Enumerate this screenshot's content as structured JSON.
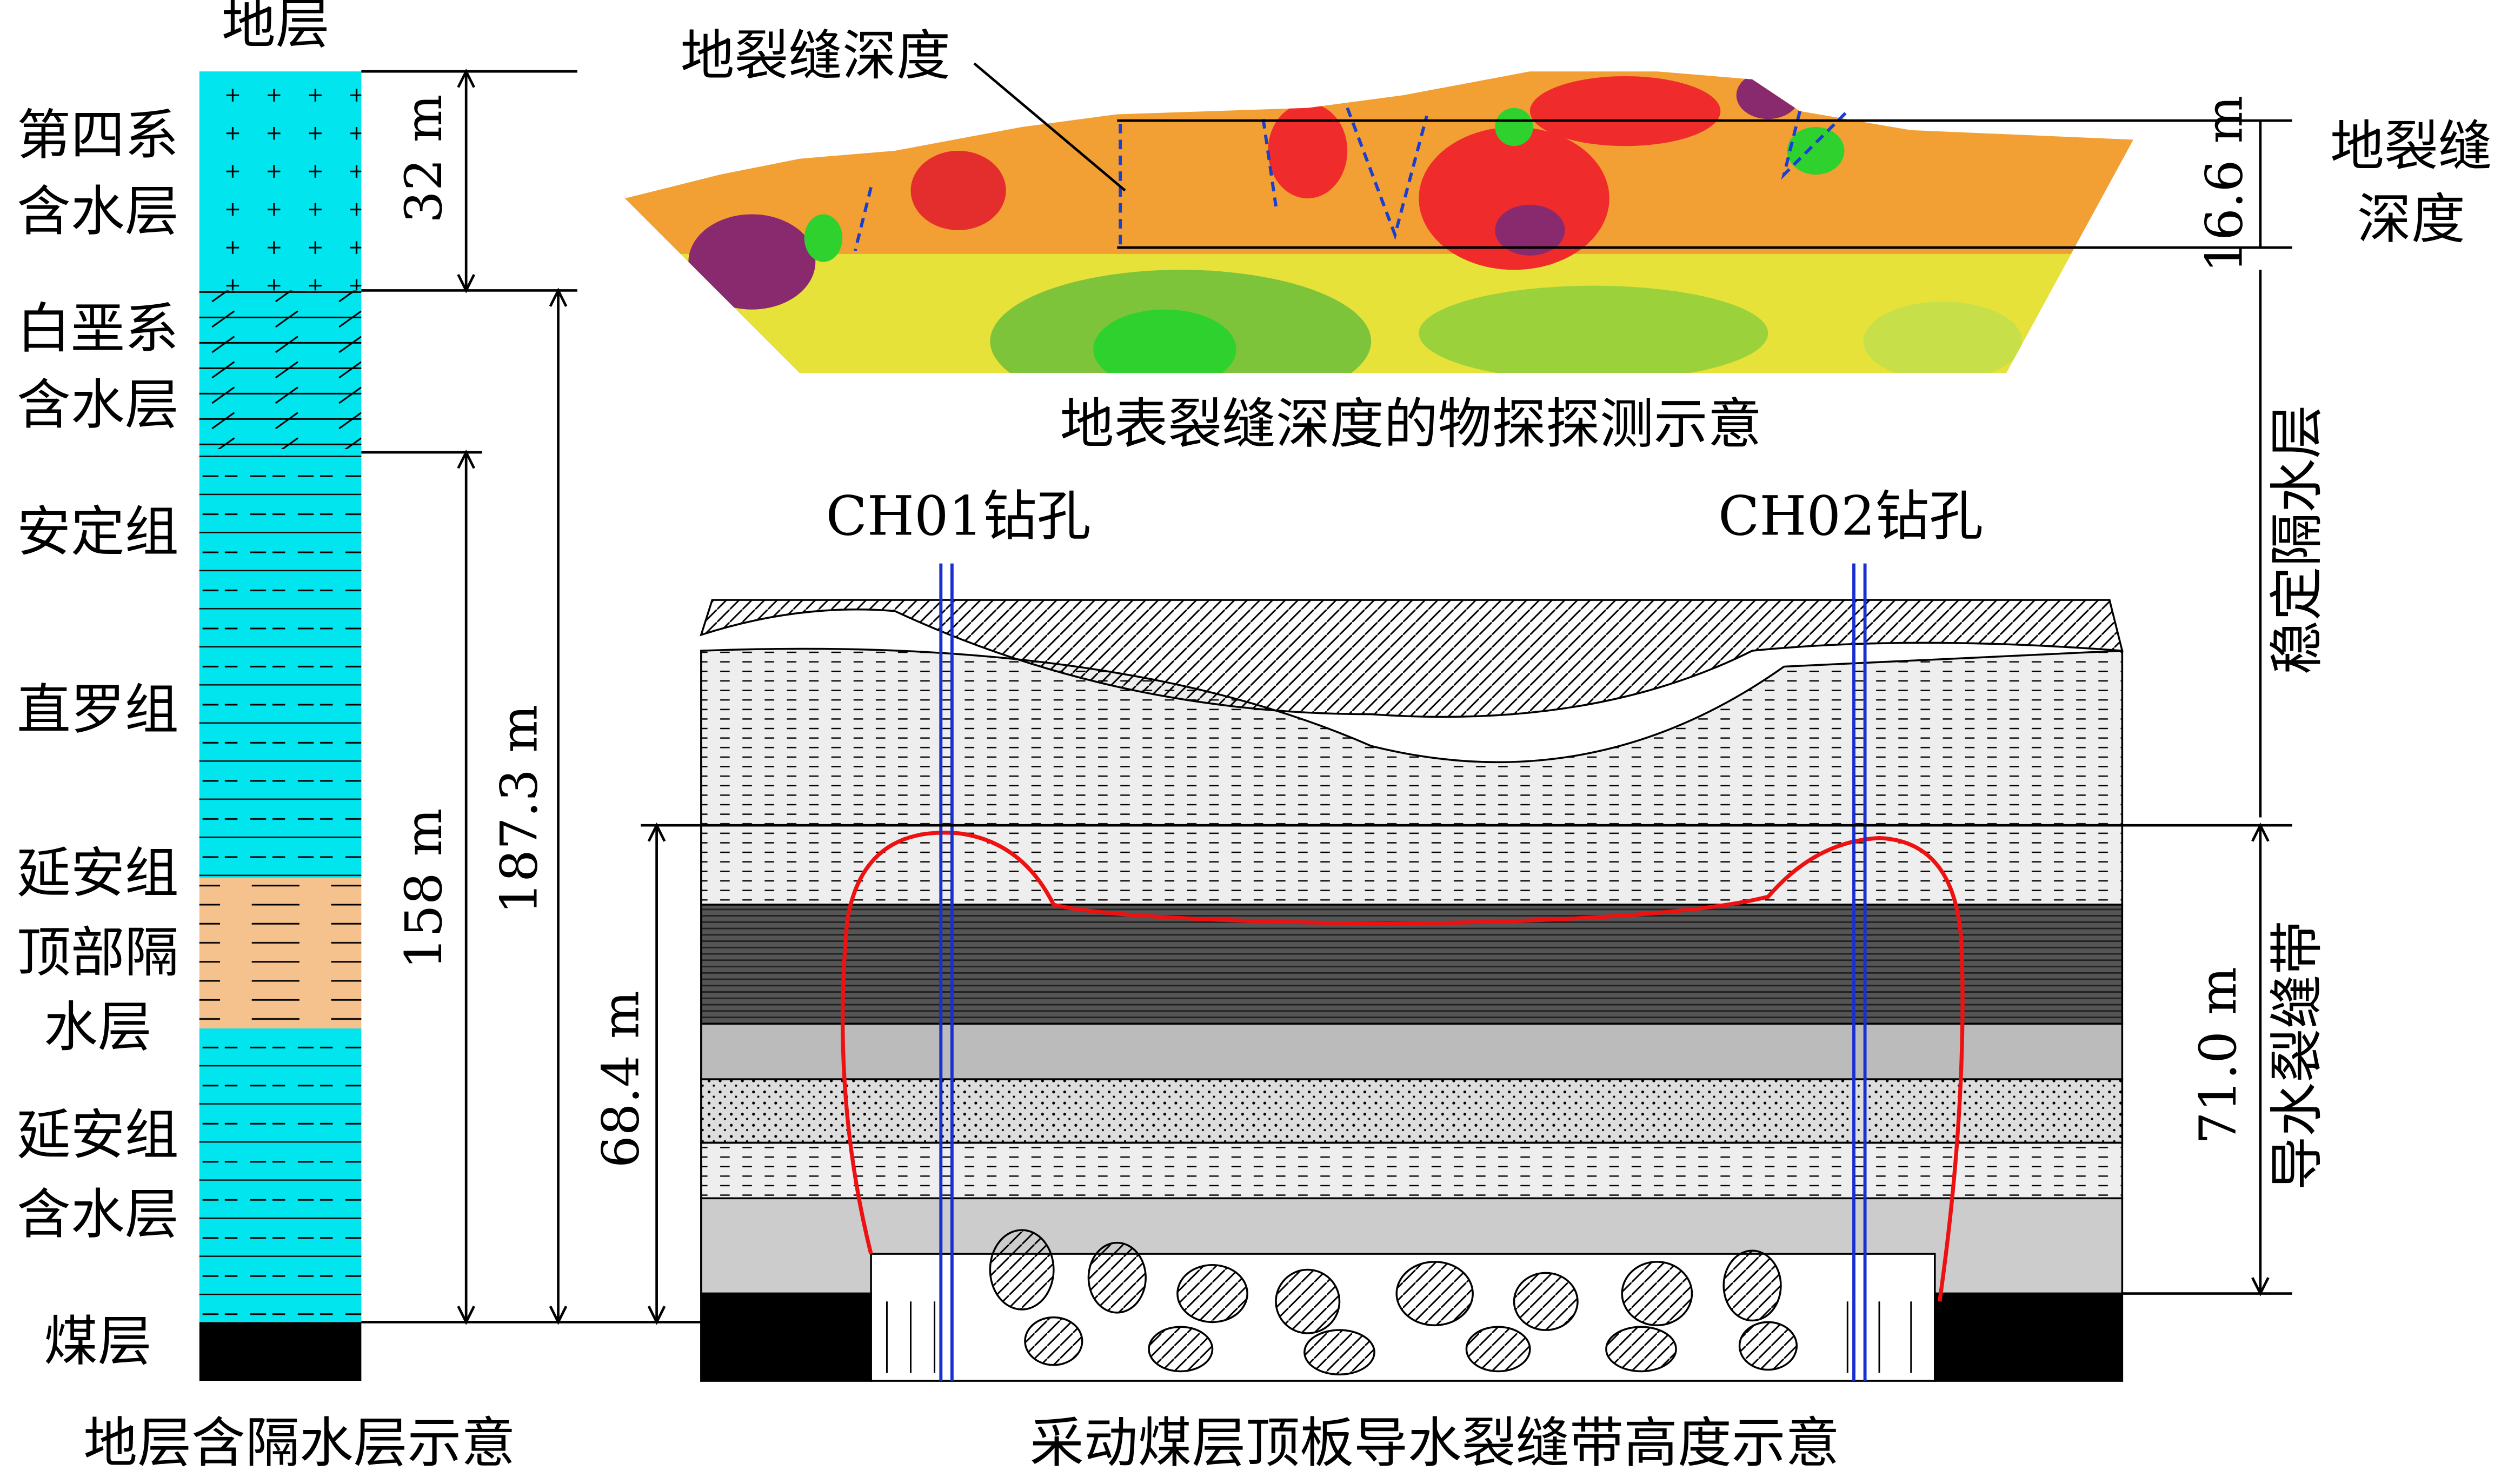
{
  "column": {
    "header": "地层",
    "layers": [
      {
        "lines": [
          "第四系",
          "含水层"
        ]
      },
      {
        "lines": [
          "白垩系",
          "含水层"
        ]
      },
      {
        "lines": [
          "安定组"
        ]
      },
      {
        "lines": [
          "直罗组"
        ]
      },
      {
        "lines": [
          "延安组",
          "顶部隔",
          "水层"
        ]
      },
      {
        "lines": [
          "延安组",
          "含水层"
        ]
      },
      {
        "lines": [
          "煤层"
        ]
      }
    ],
    "caption": "地层含隔水层示意"
  },
  "dimensions": {
    "quaternary": "32 m",
    "bedrock": "187.3 m",
    "below_cretaceous": "158 m",
    "crack_depth": "16.6 m",
    "fracture_left": "68.4 m",
    "fracture_right": "71.0 m"
  },
  "zones": {
    "crack_depth": [
      "地裂缝",
      "深度"
    ],
    "stable_aquiclude": "稳定隔水层",
    "fracture_zone": "导水裂缝带"
  },
  "profile": {
    "label": "地裂缝深度",
    "caption": "地表裂缝深度的物探探测示意"
  },
  "section": {
    "boreholes": [
      "CH01钻孔",
      "CH02钻孔"
    ],
    "caption": "采动煤层顶板导水裂缝带高度示意"
  }
}
